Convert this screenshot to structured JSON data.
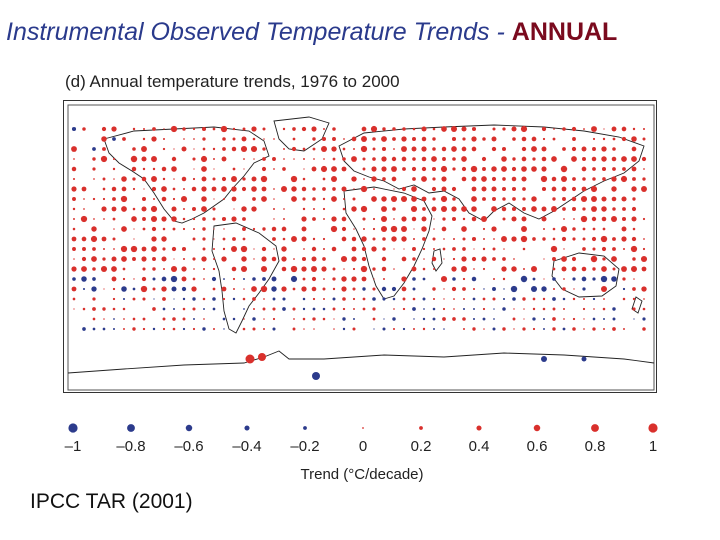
{
  "slide": {
    "title_main": "Instrumental Observed Temperature Trends - ",
    "title_accent": "ANNUAL",
    "source": "IPCC TAR (2001)"
  },
  "map": {
    "panel_title": "(d) Annual temperature trends, 1976 to 2000",
    "warming_color": "#d9302c",
    "cooling_color": "#2c3b8c"
  },
  "legend": {
    "title": "Trend (°C/decade)",
    "entries": [
      {
        "label": "–1",
        "value": -1
      },
      {
        "label": "–0.8",
        "value": -0.8
      },
      {
        "label": "–0.6",
        "value": -0.6
      },
      {
        "label": "–0.4",
        "value": -0.4
      },
      {
        "label": "–0.2",
        "value": -0.2
      },
      {
        "label": "0",
        "value": 0
      },
      {
        "label": "0.2",
        "value": 0.2
      },
      {
        "label": "0.4",
        "value": 0.4
      },
      {
        "label": "0.6",
        "value": 0.6
      },
      {
        "label": "0.8",
        "value": 0.8
      },
      {
        "label": "1",
        "value": 1
      }
    ]
  }
}
